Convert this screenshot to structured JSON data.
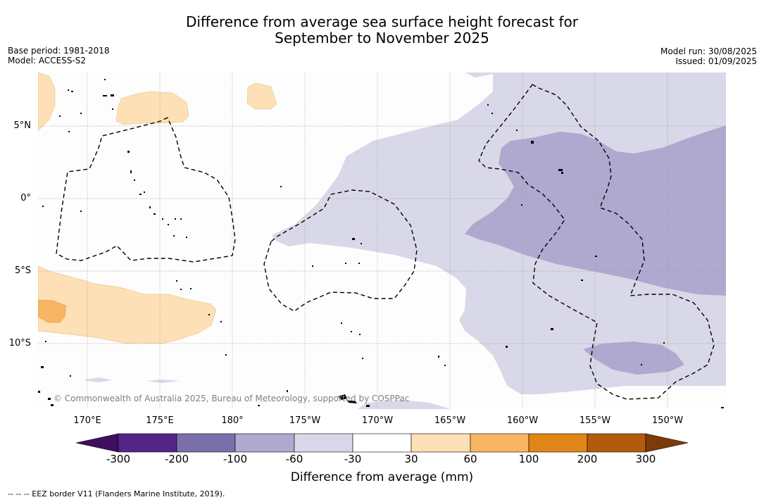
{
  "title": {
    "line1": "Difference from average sea surface height forecast for",
    "line2": "September to November 2025"
  },
  "meta": {
    "base_period": "Base period: 1981-2018",
    "model": "Model: ACCESS-S2",
    "model_run": "Model run: 30/08/2025",
    "issued": "Issued: 01/09/2025"
  },
  "map": {
    "lat_labels": [
      "5°N",
      "0°",
      "5°S",
      "10°S"
    ],
    "lon_labels": [
      "170°E",
      "175°E",
      "180°",
      "175°W",
      "170°W",
      "165°W",
      "160°W",
      "155°W",
      "150°W"
    ],
    "copyright": "© Commonwealth of Australia 2025, Bureau of Meteorology, supported by COSPPac",
    "colors": {
      "ocean": "#fdfdfd",
      "light_purple": "#d8d8e8",
      "mid_purple": "#afa9cf",
      "light_orange": "#fde0b5",
      "mid_orange": "#f8b562",
      "gridline": "#9a9a9a",
      "eez_line": "#000000"
    }
  },
  "colorbar": {
    "bins": [
      {
        "color": "#3f0e5e"
      },
      {
        "color": "#542686"
      },
      {
        "color": "#7b6fab"
      },
      {
        "color": "#afa9cf"
      },
      {
        "color": "#d8d8e8"
      },
      {
        "color": "#ffffff"
      },
      {
        "color": "#fde0b5"
      },
      {
        "color": "#f8b562"
      },
      {
        "color": "#e28519"
      },
      {
        "color": "#b35b0b"
      },
      {
        "color": "#7e3a08"
      }
    ],
    "ticks": [
      "-300",
      "-200",
      "-100",
      "-60",
      "-30",
      "30",
      "60",
      "100",
      "200",
      "300"
    ],
    "label": "Difference from average (mm)"
  },
  "footer": {
    "eez_note": "--  --  -- EEZ border V11 (Flanders Marine Institute, 2019)."
  }
}
